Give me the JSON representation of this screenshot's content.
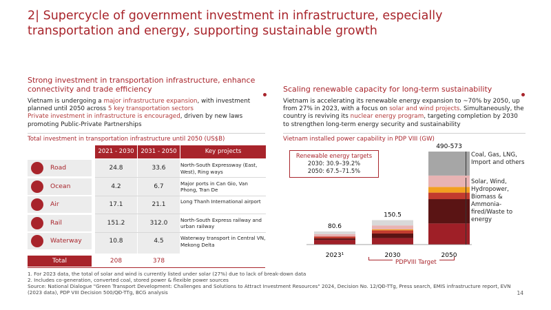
{
  "title": "2| Supercycle of government investment in infrastructure, especially transportation and energy, supporting sustainable growth",
  "left": {
    "heading": "Strong investment in transportation infrastructure, enhance connectivity and trade efficiency",
    "p1_a": "Vietnam is undergoing a ",
    "p1_hl1": "major infrastructure expansion",
    "p1_b": ", with investment planned until 2050 across ",
    "p1_hl2": "5 key transportation sectors",
    "p2": "Private investment in infrastructure is encouraged",
    "p2_b": ", driven by new laws promoting Public-Private Partnerships",
    "table_title": "Total investment in transportation infrastructure until 2050 (US$B)",
    "headers": [
      "2021 - 2030",
      "2031 - 2050",
      "Key projects"
    ],
    "rows": [
      {
        "label": "Road",
        "v1": "24.8",
        "v2": "33.6",
        "project": "North-South Expressway (East, West), Ring ways",
        "icon": "truck-icon"
      },
      {
        "label": "Ocean",
        "v1": "4.2",
        "v2": "6.7",
        "project": "Major ports in Can Gio, Van Phong, Tran De",
        "icon": "ship-icon"
      },
      {
        "label": "Air",
        "v1": "17.1",
        "v2": "21.1",
        "project": "Long Thanh International airport",
        "icon": "plane-icon"
      },
      {
        "label": "Rail",
        "v1": "151.2",
        "v2": "312.0",
        "project": "North-South Express railway and urban railway",
        "icon": "train-icon"
      },
      {
        "label": "Waterway",
        "v1": "10.8",
        "v2": "4.5",
        "project": "Waterway transport in Central VN, Mekong Delta",
        "icon": "barge-icon"
      }
    ],
    "total_label": "Total",
    "total_v1": "208",
    "total_v2": "378"
  },
  "right": {
    "heading": "Scaling renewable capacity for long-term sustainability",
    "p_a": "Vietnam is accelerating its renewable energy expansion to ~70% by 2050, up from 27% in 2023, with a focus on ",
    "p_hl1": "solar and wind projects",
    "p_b": ". Simultaneously, the country is reviving its ",
    "p_hl2": "nuclear energy program",
    "p_c": ", targeting completion by 2030 to strengthen long-term energy security and sustainability",
    "chart_title": "Vietnam installed power capability in PDP VIII (GW)",
    "targets_title": "Renewable energy targets",
    "target_2030": "2030: 30.9–39.2%",
    "target_2050": "2050: 67.5–71.5%",
    "legend_nonrenew": "Coal, Gas, LNG, Import and others",
    "legend_renew": "Solar, Wind, Hydropower, Biomass & Ammonia-fired/Waste to energy",
    "pdp_label": "PDPVIII Target"
  },
  "chart_data": {
    "type": "bar",
    "stacked": true,
    "categories": [
      "2023¹",
      "2030",
      "2050"
    ],
    "totals": [
      "80.6",
      "150.5",
      "490-573"
    ],
    "total_values": [
      80.6,
      150.5,
      573
    ],
    "segments": [
      {
        "colors": [
          "#9f1f27",
          "#5a1414",
          "#c23b2e",
          "#e8b3b3",
          "#d9d9d9"
        ],
        "values": [
          28,
          10,
          12,
          14,
          16.6
        ]
      },
      {
        "colors": [
          "#9f1f27",
          "#5a1414",
          "#c23b2e",
          "#f2a020",
          "#e8b3b3",
          "#d9d9d9"
        ],
        "values": [
          40,
          28,
          20,
          6,
          24,
          32.5
        ]
      },
      {
        "colors": [
          "#9f1f27",
          "#5a1414",
          "#c23b2e",
          "#f2a020",
          "#e8b3b3",
          "#a6a6a6"
        ],
        "values": [
          130,
          150,
          40,
          35,
          70,
          148
        ]
      }
    ]
  },
  "footnotes": [
    "1. For 2023 data, the total of solar and wind is currently listed under solar (27%) due to lack of break-down data",
    "2. Includes co-generation, converted coal, stored power & flexible power sources",
    "Source: National Dialogue \"Green Transport Development: Challenges and Solutions to Attract Investment Resources\" 2024, Decision No. 12/QĐ-TTg, Press search, EMIS infrastructure report, EVN (2023 data), PDP VIII Decision 500/QĐ-TTg, BCG analysis"
  ],
  "page_number": "14"
}
